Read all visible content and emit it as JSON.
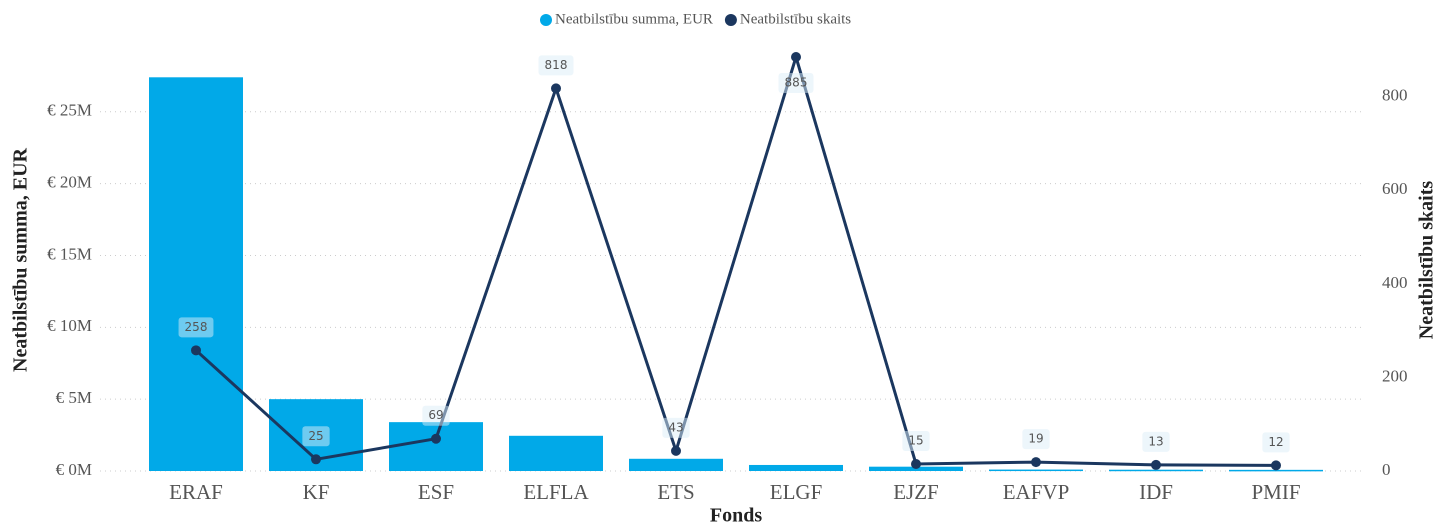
{
  "chart_data": {
    "type": "bar-line",
    "categories": [
      "ERAF",
      "KF",
      "ESF",
      "ELFLA",
      "ETS",
      "ELGF",
      "EJZF",
      "EAFVP",
      "IDF",
      "PMIF"
    ],
    "series": [
      {
        "name": "Neatbilstību summa, EUR",
        "color": "#01a9e8",
        "type": "bar",
        "values": [
          27400000,
          5000000,
          3400000,
          2450000,
          850000,
          420000,
          300000,
          100000,
          90000,
          80000
        ]
      },
      {
        "name": "Neatbilstību skaits",
        "color": "#1b375f",
        "type": "line",
        "axis": "y2",
        "values": [
          258,
          25,
          69,
          818,
          43,
          885,
          15,
          19,
          13,
          12
        ]
      }
    ],
    "xlabel": "Fonds",
    "ylabel": "Neatbilstību summa, EUR",
    "y2label": "Neatbilstību skaits",
    "ylim": [
      0,
      29300000
    ],
    "yticks": [
      {
        "value": 0,
        "label": "€ 0M"
      },
      {
        "value": 5000000,
        "label": "€ 5M"
      },
      {
        "value": 10000000,
        "label": "€ 10M"
      },
      {
        "value": 15000000,
        "label": "€ 15M"
      },
      {
        "value": 20000000,
        "label": "€ 20M"
      },
      {
        "value": 25000000,
        "label": "€ 25M"
      }
    ],
    "y2lim": [
      0,
      900
    ],
    "y2ticks": [
      0,
      200,
      400,
      600,
      800
    ],
    "grid": true,
    "legend": "top"
  }
}
